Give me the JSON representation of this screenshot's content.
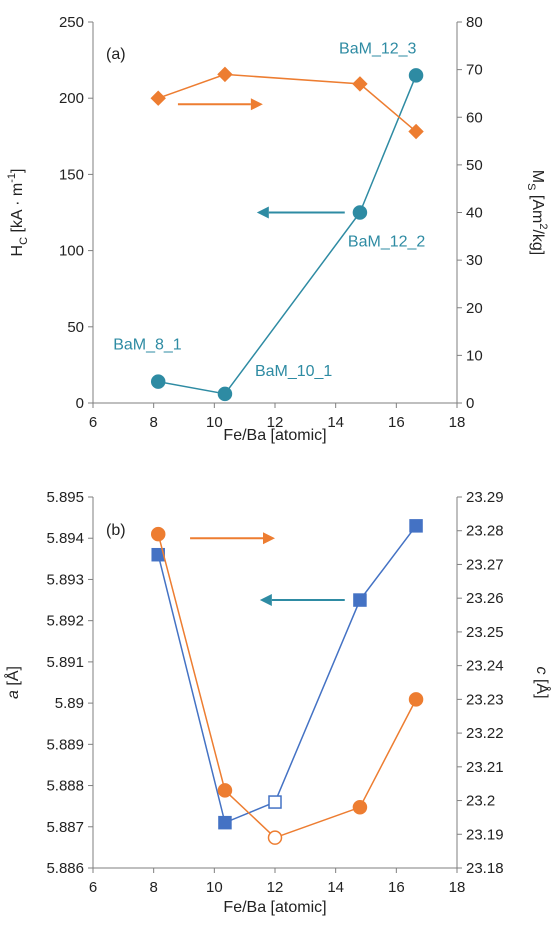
{
  "colors": {
    "orange": "#ed7d31",
    "teal": "#2e8ba3",
    "blue": "#4472c4",
    "axis": "#7f7f7f",
    "text": "#222222"
  },
  "chart_data": [
    {
      "type": "line",
      "panel_label": "(a)",
      "xlabel": "Fe/Ba [atomic]",
      "xlim": [
        6,
        18
      ],
      "xticks": [
        6,
        8,
        10,
        12,
        14,
        16,
        18
      ],
      "ylabel_left": {
        "main": "H",
        "sub": "C",
        "rest": " [kA · m",
        "sup": "-1",
        "end": "]"
      },
      "ylim_left": [
        0,
        250
      ],
      "yticks_left": [
        0,
        50,
        100,
        150,
        200,
        250
      ],
      "ylabel_right": {
        "main": "M",
        "sub": "S",
        "rest": " [Am",
        "sup": "2",
        "end": "/kg]"
      },
      "ylim_right": [
        0,
        80
      ],
      "yticks_right": [
        0,
        10,
        20,
        30,
        40,
        50,
        60,
        70,
        80
      ],
      "series": [
        {
          "axis": "left",
          "color": "teal",
          "marker": "circle",
          "points": [
            {
              "x": 8.15,
              "y": 14,
              "label": "BaM_8_1"
            },
            {
              "x": 10.35,
              "y": 6,
              "label": "BaM_10_1"
            },
            {
              "x": 14.8,
              "y": 125,
              "label": "BaM_12_2"
            },
            {
              "x": 16.65,
              "y": 215,
              "label": "BaM_12_3"
            }
          ]
        },
        {
          "axis": "right",
          "color": "orange",
          "marker": "diamond",
          "points": [
            {
              "x": 8.15,
              "y": 64
            },
            {
              "x": 10.35,
              "y": 69
            },
            {
              "x": 14.8,
              "y": 67
            },
            {
              "x": 16.65,
              "y": 57
            }
          ]
        }
      ],
      "arrows": [
        {
          "color": "orange",
          "direction": "right",
          "from": [
            8.8,
            196
          ],
          "to": [
            11.6,
            196
          ]
        },
        {
          "color": "teal",
          "direction": "left",
          "from": [
            14.3,
            125
          ],
          "to": [
            11.4,
            125
          ]
        }
      ]
    },
    {
      "type": "line",
      "panel_label": "(b)",
      "xlabel": "Fe/Ba [atomic]",
      "xlim": [
        6,
        18
      ],
      "xticks": [
        6,
        8,
        10,
        12,
        14,
        16,
        18
      ],
      "ylabel_left": "a [Å]",
      "ylim_left": [
        5.886,
        5.895
      ],
      "yticks_left": [
        "5.886",
        "5.887",
        "5.888",
        "5.889",
        "5.89",
        "5.891",
        "5.892",
        "5.893",
        "5.894",
        "5.895"
      ],
      "ylabel_right": "c [Å]",
      "ylim_right": [
        23.18,
        23.29
      ],
      "yticks_right": [
        "23.18",
        "23.19",
        "23.2",
        "23.21",
        "23.22",
        "23.23",
        "23.24",
        "23.25",
        "23.26",
        "23.27",
        "23.28",
        "23.29"
      ],
      "series": [
        {
          "axis": "left",
          "color": "blue",
          "marker": "square",
          "points": [
            {
              "x": 8.15,
              "y": 5.8936,
              "filled": true
            },
            {
              "x": 10.35,
              "y": 5.8871,
              "filled": true
            },
            {
              "x": 12.0,
              "y": 5.8876,
              "filled": false
            },
            {
              "x": 14.8,
              "y": 5.8925,
              "filled": true
            },
            {
              "x": 16.65,
              "y": 5.8943,
              "filled": true
            }
          ]
        },
        {
          "axis": "right",
          "color": "orange",
          "marker": "circle",
          "points": [
            {
              "x": 8.15,
              "y": 23.279,
              "filled": true
            },
            {
              "x": 10.35,
              "y": 23.203,
              "filled": true
            },
            {
              "x": 12.0,
              "y": 23.189,
              "filled": false
            },
            {
              "x": 14.8,
              "y": 23.198,
              "filled": true
            },
            {
              "x": 16.65,
              "y": 23.23,
              "filled": true
            }
          ]
        }
      ],
      "arrows": [
        {
          "color": "orange",
          "direction": "right",
          "from": [
            9.2,
            5.894
          ],
          "to": [
            12.0,
            5.894
          ]
        },
        {
          "color": "teal",
          "direction": "left",
          "from": [
            14.3,
            5.8925
          ],
          "to": [
            11.5,
            5.8925
          ]
        }
      ]
    }
  ]
}
